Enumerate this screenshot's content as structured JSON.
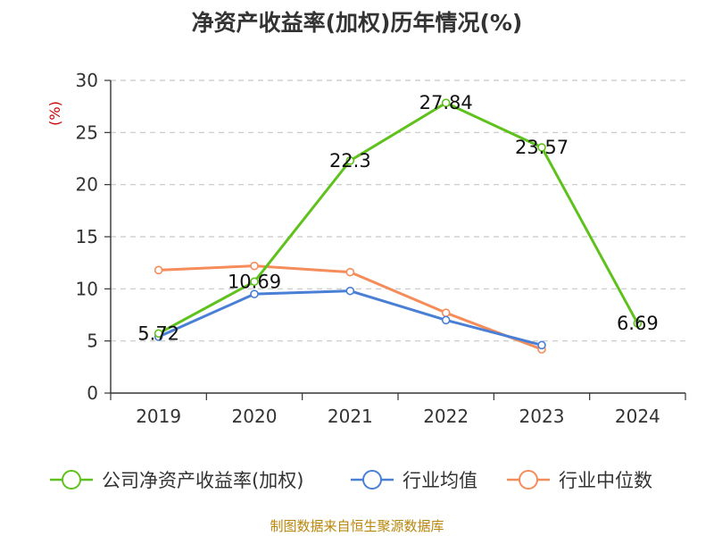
{
  "chart_data": {
    "type": "line",
    "title": "净资产收益率(加权)历年情况(%)",
    "ylabel": "(%)",
    "categories": [
      "2019",
      "2020",
      "2021",
      "2022",
      "2023",
      "2024"
    ],
    "ylim": [
      0,
      30
    ],
    "yticks": [
      0,
      5,
      10,
      15,
      20,
      25,
      30
    ],
    "grid": true,
    "legend_position": "bottom",
    "series": [
      {
        "name": "公司净资产收益率(加权)",
        "color": "#5fc21c",
        "values": [
          5.72,
          10.69,
          22.3,
          27.84,
          23.57,
          6.69
        ],
        "labels": [
          "5.72",
          "10.69",
          "22.3",
          "27.84",
          "23.57",
          "6.69"
        ]
      },
      {
        "name": "行业均值",
        "color": "#4a7fd6",
        "values": [
          5.4,
          9.5,
          9.8,
          7.0,
          4.6,
          null
        ]
      },
      {
        "name": "行业中位数",
        "color": "#f58c5a",
        "values": [
          11.8,
          12.2,
          11.6,
          7.7,
          4.2,
          null
        ]
      }
    ]
  },
  "footer": {
    "source": "制图数据来自恒生聚源数据库"
  }
}
